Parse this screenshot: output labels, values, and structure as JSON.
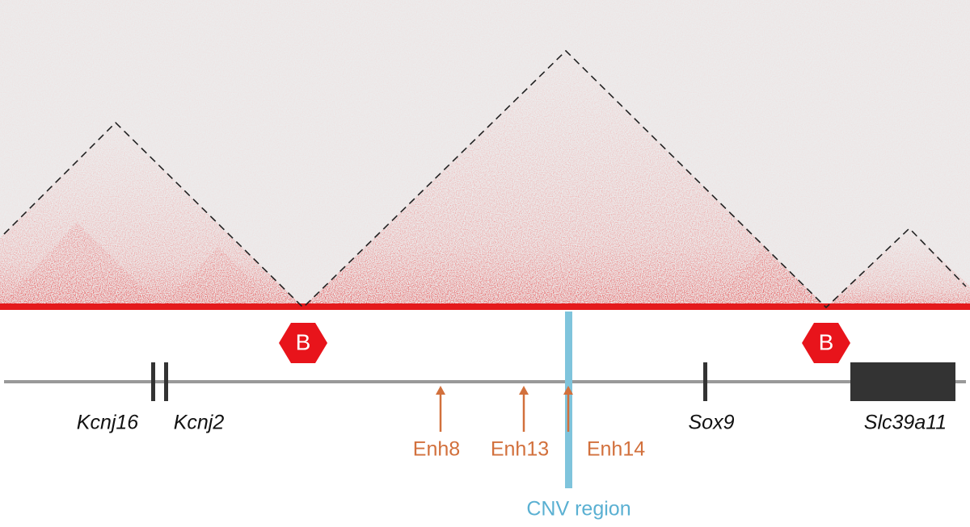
{
  "boundaries": [
    {
      "label": "B"
    },
    {
      "label": "B"
    }
  ],
  "genes": [
    {
      "label": "Kcnj16"
    },
    {
      "label": "Kcnj2"
    },
    {
      "label": "Sox9"
    },
    {
      "label": "Slc39a11"
    }
  ],
  "enhancers": [
    {
      "label": "Enh8"
    },
    {
      "label": "Enh13"
    },
    {
      "label": "Enh14"
    }
  ],
  "cnv": {
    "label": "CNV region"
  }
}
